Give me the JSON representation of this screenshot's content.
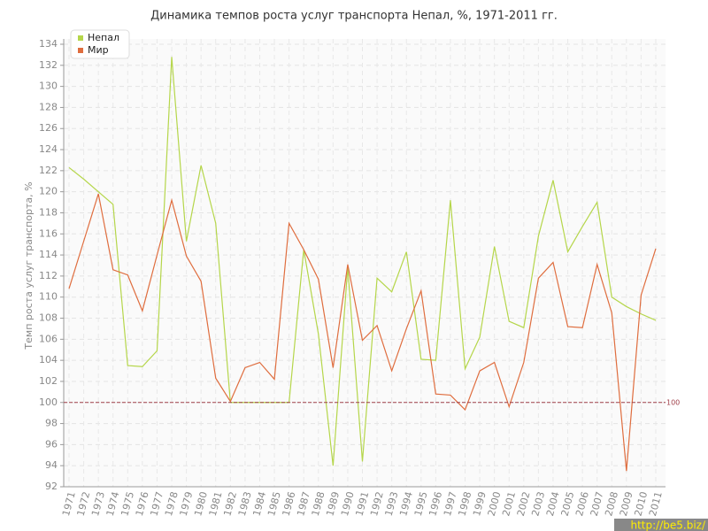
{
  "chart_data": {
    "type": "line",
    "title": "Динамика темпов роста услуг транспорта Непал, %, 1971-2011 гг.",
    "y_label": "Темп роста услуг транспорта, %",
    "categories": [
      "1971",
      "1972",
      "1973",
      "1974",
      "1975",
      "1976",
      "1977",
      "1978",
      "1979",
      "1980",
      "1981",
      "1982",
      "1983",
      "1984",
      "1985",
      "1986",
      "1987",
      "1988",
      "1989",
      "1990",
      "1991",
      "1992",
      "1993",
      "1994",
      "1995",
      "1996",
      "1997",
      "1998",
      "1999",
      "2000",
      "2001",
      "2002",
      "2003",
      "2004",
      "2005",
      "2006",
      "2007",
      "2008",
      "2009",
      "2010",
      "2011"
    ],
    "series": [
      {
        "name": "Непал",
        "color": "#b5d64a",
        "values": [
          122.3,
          121.2,
          120,
          118.8,
          103.5,
          103.4,
          104.9,
          132.8,
          115.3,
          122.5,
          117,
          100,
          100,
          100,
          100,
          100,
          114.5,
          106.5,
          94,
          112.8,
          94.4,
          111.8,
          110.5,
          114.3,
          104.1,
          104,
          119.2,
          103.2,
          106.2,
          114.8,
          107.7,
          107.1,
          115.8,
          121.1,
          114.3,
          116.7,
          119,
          110,
          109.1,
          108.4,
          107.8
        ]
      },
      {
        "name": "Мир",
        "color": "#df6d3e",
        "values": [
          110.8,
          115.3,
          119.8,
          112.6,
          112.1,
          108.7,
          114,
          119.2,
          113.9,
          111.5,
          102.3,
          100.1,
          103.3,
          103.8,
          102.2,
          117,
          114.5,
          111.7,
          103.3,
          113.1,
          105.9,
          107.3,
          103,
          107,
          110.6,
          100.8,
          100.7,
          99.3,
          103,
          103.8,
          99.6,
          103.8,
          111.8,
          113.3,
          107.2,
          107.1,
          113.1,
          108.5,
          93.5,
          110.2,
          114.6
        ]
      }
    ],
    "ylim": [
      92,
      134
    ],
    "yticks": [
      92,
      94,
      96,
      98,
      100,
      102,
      104,
      106,
      108,
      110,
      112,
      114,
      116,
      118,
      120,
      122,
      124,
      126,
      128,
      130,
      132,
      134
    ],
    "grid": true,
    "legend": "top-left",
    "reference_line": {
      "value": 100,
      "label": "100",
      "color": "#a0404a"
    },
    "watermark": "http://be5.biz/"
  }
}
